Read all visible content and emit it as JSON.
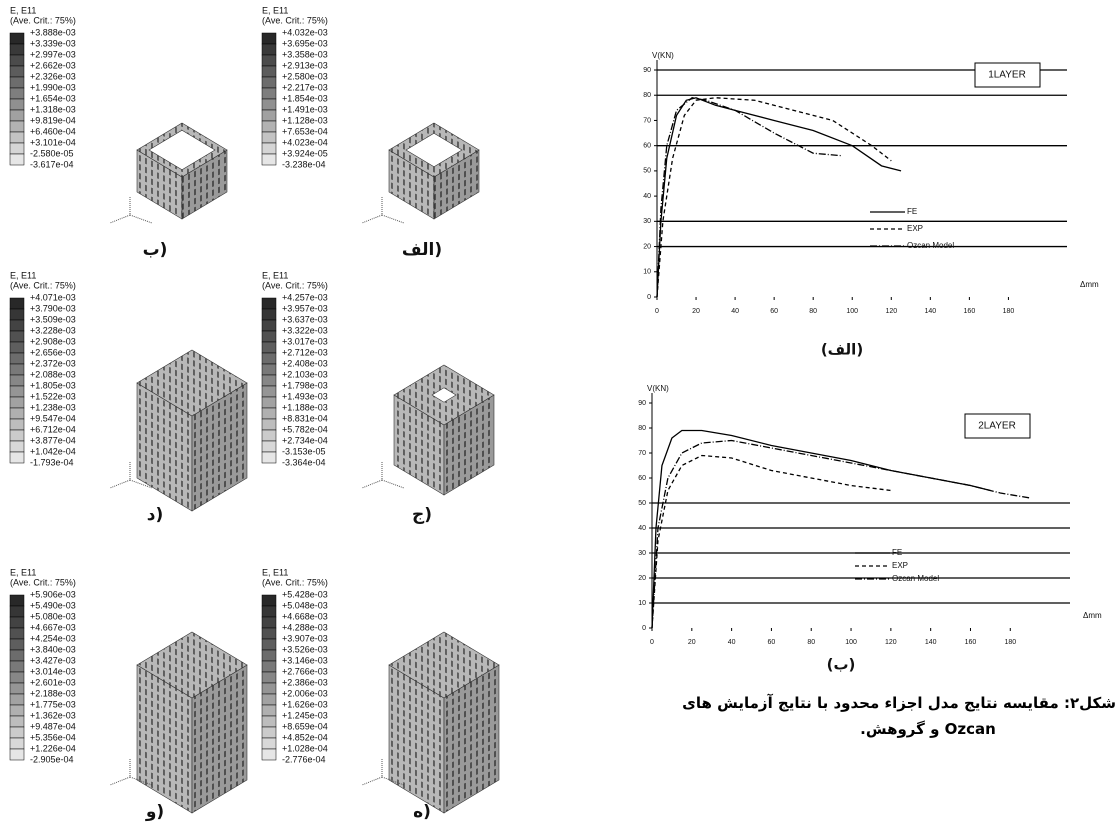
{
  "panels": [
    {
      "title": "E, E11",
      "subtitle": "(Ave. Crit.: 75%)",
      "label": "ب)",
      "levels": [
        "+3.888e-03",
        "+3.339e-03",
        "+2.997e-03",
        "+2.662e-03",
        "+2.326e-03",
        "+1.990e-03",
        "+1.654e-03",
        "+1.318e-03",
        "+9.819e-04",
        "+6.460e-04",
        "+3.101e-04",
        "-2.580e-05",
        "-3.617e-04"
      ]
    },
    {
      "title": "E, E11",
      "subtitle": "(Ave. Crit.: 75%)",
      "label": "الف)",
      "levels": [
        "+4.032e-03",
        "+3.695e-03",
        "+3.358e-03",
        "+2.913e-03",
        "+2.580e-03",
        "+2.217e-03",
        "+1.854e-03",
        "+1.491e-03",
        "+1.128e-03",
        "+7.653e-04",
        "+4.023e-04",
        "+3.924e-05",
        "-3.238e-04"
      ]
    },
    {
      "title": "E, E11",
      "subtitle": "(Ave. Crit.: 75%)",
      "label": "د)",
      "levels": [
        "+4.071e-03",
        "+3.790e-03",
        "+3.509e-03",
        "+3.228e-03",
        "+2.908e-03",
        "+2.656e-03",
        "+2.372e-03",
        "+2.088e-03",
        "+1.805e-03",
        "+1.522e-03",
        "+1.238e-03",
        "+9.547e-04",
        "+6.712e-04",
        "+3.877e-04",
        "+1.042e-04",
        "-1.793e-04"
      ]
    },
    {
      "title": "E, E11",
      "subtitle": "(Ave. Crit.: 75%)",
      "label": "ج)",
      "levels": [
        "+4.257e-03",
        "+3.957e-03",
        "+3.637e-03",
        "+3.322e-03",
        "+3.017e-03",
        "+2.712e-03",
        "+2.408e-03",
        "+2.103e-03",
        "+1.798e-03",
        "+1.493e-03",
        "+1.188e-03",
        "+8.831e-04",
        "+5.782e-04",
        "+2.734e-04",
        "-3.153e-05",
        "-3.364e-04"
      ]
    },
    {
      "title": "E, E11",
      "subtitle": "(Ave. Crit.: 75%)",
      "label": "و)",
      "levels": [
        "+5.906e-03",
        "+5.490e-03",
        "+5.080e-03",
        "+4.667e-03",
        "+4.254e-03",
        "+3.840e-03",
        "+3.427e-03",
        "+3.014e-03",
        "+2.601e-03",
        "+2.188e-03",
        "+1.775e-03",
        "+1.362e-03",
        "+9.487e-04",
        "+5.356e-04",
        "+1.226e-04",
        "-2.905e-04"
      ]
    },
    {
      "title": "E, E11",
      "subtitle": "(Ave. Crit.: 75%)",
      "label": "ه)",
      "levels": [
        "+5.428e-03",
        "+5.048e-03",
        "+4.668e-03",
        "+4.288e-03",
        "+3.907e-03",
        "+3.526e-03",
        "+3.146e-03",
        "+2.766e-03",
        "+2.386e-03",
        "+2.006e-03",
        "+1.626e-03",
        "+1.245e-03",
        "+8.659e-04",
        "+4.852e-04",
        "+1.028e-04",
        "-2.776e-04"
      ]
    }
  ],
  "chart_data": [
    {
      "type": "line",
      "title": "(الف)",
      "y_label": "V(KN)",
      "x_label": "Δmm",
      "annotation": "1LAYER",
      "xlim": [
        0,
        210
      ],
      "ylim": [
        0,
        90
      ],
      "xticks": [
        0,
        20,
        40,
        60,
        80,
        100,
        120,
        140,
        160,
        180
      ],
      "yticks": [
        0,
        10,
        20,
        30,
        40,
        50,
        60,
        70,
        80,
        90
      ],
      "hlines": [
        90,
        80,
        60,
        30,
        20
      ],
      "series": [
        {
          "name": "FE",
          "color": "#000000",
          "dash": "solid",
          "x": [
            0,
            2,
            5,
            10,
            15,
            20,
            30,
            40,
            60,
            80,
            100,
            115,
            125
          ],
          "values": [
            0,
            30,
            55,
            72,
            78,
            79,
            76,
            74,
            70,
            66,
            60,
            52,
            50
          ]
        },
        {
          "name": "EXP",
          "color": "#000000",
          "dash": "dashed",
          "x": [
            0,
            3,
            8,
            14,
            20,
            30,
            50,
            70,
            90,
            110,
            120
          ],
          "values": [
            0,
            30,
            55,
            72,
            78,
            79,
            78,
            74,
            70,
            60,
            54
          ]
        },
        {
          "name": "Ozcan Model",
          "color": "#000000",
          "dash": "dashdot",
          "x": [
            0,
            2,
            5,
            10,
            18,
            25,
            40,
            60,
            80,
            95
          ],
          "values": [
            0,
            35,
            60,
            74,
            79,
            78,
            74,
            65,
            57,
            56
          ]
        }
      ]
    },
    {
      "type": "line",
      "title": "(ب)",
      "y_label": "V(KN)",
      "x_label": "Δmm",
      "annotation": "2LAYER",
      "xlim": [
        0,
        210
      ],
      "ylim": [
        0,
        90
      ],
      "xticks": [
        0,
        20,
        40,
        60,
        80,
        100,
        120,
        140,
        160,
        180
      ],
      "yticks": [
        0,
        10,
        20,
        30,
        40,
        50,
        60,
        70,
        80,
        90
      ],
      "hlines": [
        50,
        40,
        30,
        20,
        10
      ],
      "series": [
        {
          "name": "FE",
          "color": "#000000",
          "dash": "solid",
          "x": [
            0,
            2,
            5,
            10,
            15,
            25,
            40,
            60,
            80,
            100,
            120,
            140,
            160,
            170
          ],
          "values": [
            0,
            40,
            65,
            76,
            79,
            79,
            77,
            73,
            70,
            67,
            63,
            60,
            57,
            55
          ]
        },
        {
          "name": "EXP",
          "color": "#000000",
          "dash": "dashed",
          "x": [
            0,
            3,
            8,
            15,
            25,
            40,
            60,
            80,
            100,
            120
          ],
          "values": [
            0,
            35,
            55,
            65,
            69,
            68,
            63,
            60,
            57,
            55
          ]
        },
        {
          "name": "Ozcan Model",
          "color": "#000000",
          "dash": "dashdot",
          "x": [
            0,
            3,
            8,
            15,
            25,
            40,
            60,
            80,
            100,
            120,
            140,
            160,
            175,
            190
          ],
          "values": [
            0,
            40,
            60,
            70,
            74,
            75,
            72,
            69,
            66,
            63,
            60,
            57,
            54,
            52
          ]
        }
      ]
    }
  ],
  "caption": [
    "شکل۲: مقایسه نتایج مدل اجزاء محدود با نتایج آزمایش های",
    "Ozcan و گروهش."
  ]
}
